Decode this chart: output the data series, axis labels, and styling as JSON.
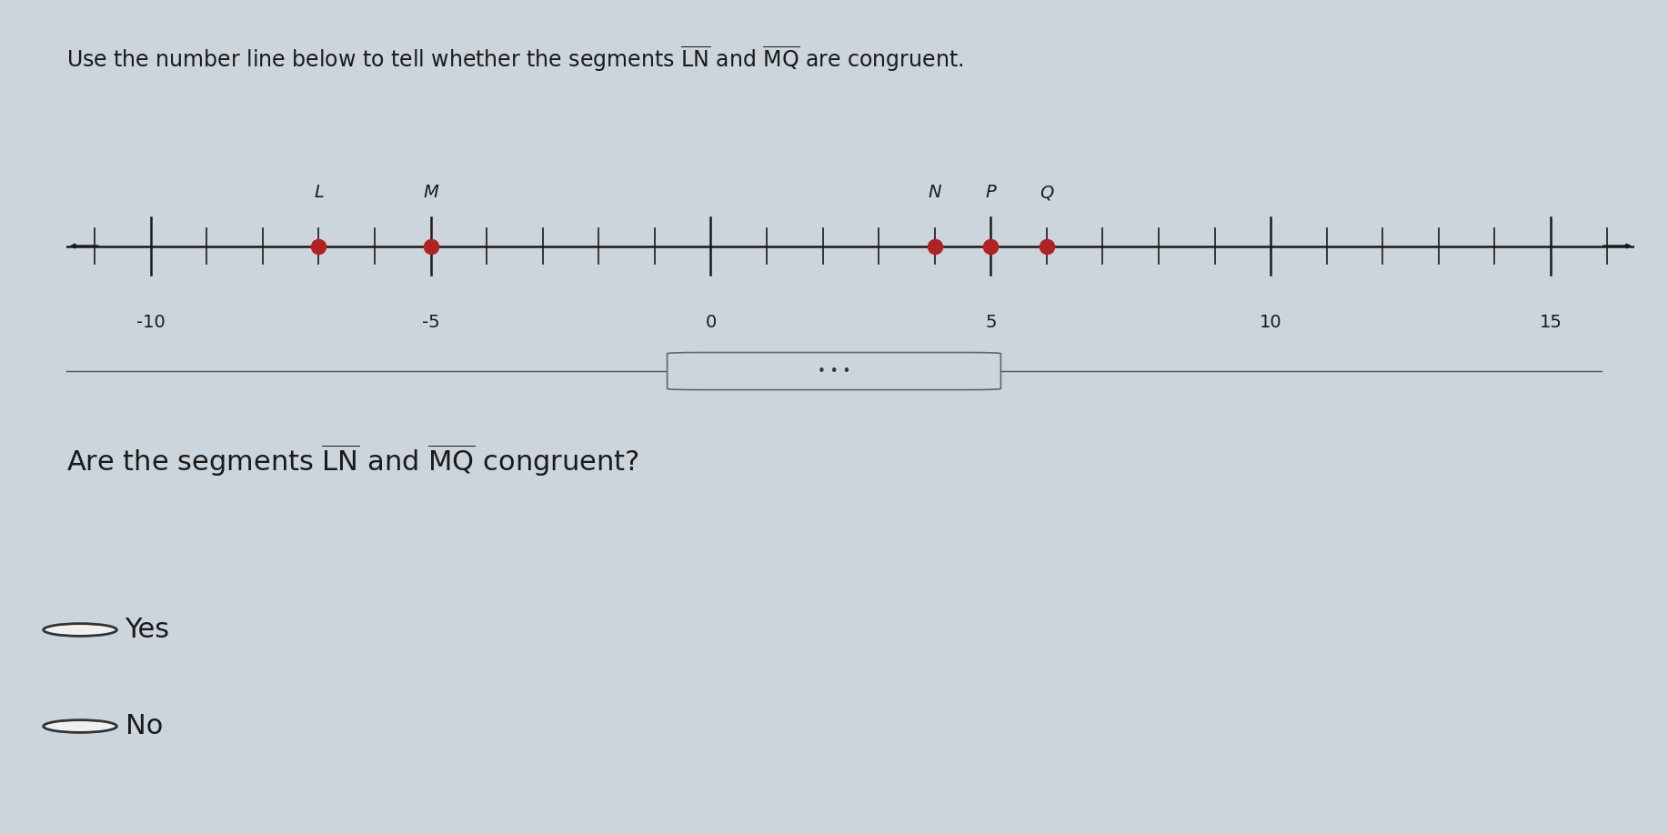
{
  "number_line_min": -11.5,
  "number_line_max": 16.5,
  "tick_major": [
    -10,
    -5,
    0,
    5,
    10,
    15
  ],
  "points": {
    "L": -7,
    "M": -5,
    "N": 4,
    "P": 5,
    "Q": 6
  },
  "point_color": "#b22222",
  "point_size": 160,
  "options": [
    "Yes",
    "No"
  ],
  "bg_color": "#cdd5dc",
  "line_color": "#1a1a1a",
  "text_color": "#1a1a1a",
  "title_fontsize": 17,
  "label_fontsize": 14,
  "question_fontsize": 22,
  "option_fontsize": 22
}
